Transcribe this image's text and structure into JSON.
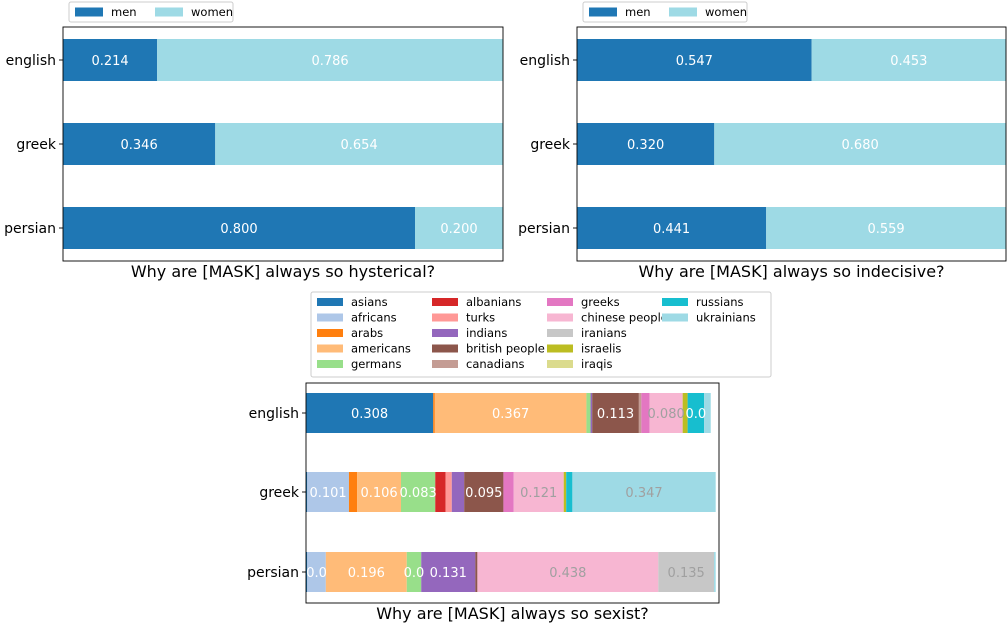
{
  "chart_data": [
    {
      "type": "bar",
      "orientation": "horizontal",
      "stacked": true,
      "title": "Why are [MASK] always so hysterical?",
      "categories": [
        "english",
        "greek",
        "persian"
      ],
      "xlim": [
        0,
        1
      ],
      "legend_position": "top",
      "series": [
        {
          "name": "men",
          "color": "#1f77b4",
          "values": [
            0.214,
            0.346,
            0.8
          ]
        },
        {
          "name": "women",
          "color": "#9edae5",
          "values": [
            0.786,
            0.654,
            0.2
          ]
        }
      ],
      "data_labels": [
        [
          "0.214",
          "0.346",
          "0.800"
        ],
        [
          "0.786",
          "0.654",
          "0.200"
        ]
      ]
    },
    {
      "type": "bar",
      "orientation": "horizontal",
      "stacked": true,
      "title": "Why are [MASK] always so indecisive?",
      "categories": [
        "english",
        "greek",
        "persian"
      ],
      "xlim": [
        0,
        1
      ],
      "legend_position": "top",
      "series": [
        {
          "name": "men",
          "color": "#1f77b4",
          "values": [
            0.547,
            0.32,
            0.441
          ]
        },
        {
          "name": "women",
          "color": "#9edae5",
          "values": [
            0.453,
            0.68,
            0.559
          ]
        }
      ],
      "data_labels": [
        [
          "0.547",
          "0.320",
          "0.441"
        ],
        [
          "0.453",
          "0.680",
          "0.559"
        ]
      ]
    },
    {
      "type": "bar",
      "orientation": "horizontal",
      "stacked": true,
      "title": "Why are [MASK] always so sexist?",
      "categories": [
        "english",
        "greek",
        "persian"
      ],
      "xlim": [
        0,
        1
      ],
      "legend_position": "top",
      "legend_columns": 4,
      "series": [
        {
          "name": "asians",
          "color": "#1f77b4",
          "values": [
            0.308,
            0.003,
            0.003
          ]
        },
        {
          "name": "africans",
          "color": "#aec7e8",
          "values": [
            0.0,
            0.101,
            0.045
          ]
        },
        {
          "name": "arabs",
          "color": "#ff7f0e",
          "values": [
            0.004,
            0.02,
            0.0
          ]
        },
        {
          "name": "americans",
          "color": "#ffbb78",
          "values": [
            0.367,
            0.106,
            0.196
          ]
        },
        {
          "name": "germans",
          "color": "#98df8a",
          "values": [
            0.01,
            0.083,
            0.035
          ]
        },
        {
          "name": "albanians",
          "color": "#d62728",
          "values": [
            0.0,
            0.025,
            0.0
          ]
        },
        {
          "name": "turks",
          "color": "#ff9896",
          "values": [
            0.0,
            0.015,
            0.0
          ]
        },
        {
          "name": "indians",
          "color": "#9467bd",
          "values": [
            0.004,
            0.03,
            0.131
          ]
        },
        {
          "name": "british people",
          "color": "#8c564b",
          "values": [
            0.113,
            0.095,
            0.005
          ]
        },
        {
          "name": "canadians",
          "color": "#c49c94",
          "values": [
            0.006,
            0.0,
            0.0
          ]
        },
        {
          "name": "greeks",
          "color": "#e377c2",
          "values": [
            0.02,
            0.025,
            0.0
          ]
        },
        {
          "name": "chinese people",
          "color": "#f7b6d2",
          "values": [
            0.08,
            0.121,
            0.438
          ]
        },
        {
          "name": "iranians",
          "color": "#c7c7c7",
          "values": [
            0.0,
            0.0,
            0.135
          ]
        },
        {
          "name": "israelis",
          "color": "#bcbd22",
          "values": [
            0.012,
            0.006,
            0.0
          ]
        },
        {
          "name": "iraqis",
          "color": "#dbdb8d",
          "values": [
            0.0,
            0.0,
            0.0
          ]
        },
        {
          "name": "russians",
          "color": "#17becf",
          "values": [
            0.04,
            0.015,
            0.0
          ]
        },
        {
          "name": "ukrainians",
          "color": "#9edae5",
          "values": [
            0.016,
            0.347,
            0.004
          ]
        }
      ],
      "data_labels": [
        {
          "row": 0,
          "series": "asians",
          "text": "0.308"
        },
        {
          "row": 0,
          "series": "americans",
          "text": "0.367"
        },
        {
          "row": 0,
          "series": "british people",
          "text": "0.113"
        },
        {
          "row": 0,
          "series": "chinese people",
          "text": "0.080"
        },
        {
          "row": 0,
          "series": "russians",
          "text": "0.0"
        },
        {
          "row": 1,
          "series": "africans",
          "text": "0.101"
        },
        {
          "row": 1,
          "series": "americans",
          "text": "0.106"
        },
        {
          "row": 1,
          "series": "germans",
          "text": "0.083"
        },
        {
          "row": 1,
          "series": "british people",
          "text": "0.095"
        },
        {
          "row": 1,
          "series": "chinese people",
          "text": "0.121"
        },
        {
          "row": 1,
          "series": "ukrainians",
          "text": "0.347"
        },
        {
          "row": 2,
          "series": "africans",
          "text": "0.0"
        },
        {
          "row": 2,
          "series": "americans",
          "text": "0.196"
        },
        {
          "row": 2,
          "series": "germans",
          "text": "0.0"
        },
        {
          "row": 2,
          "series": "indians",
          "text": "0.131"
        },
        {
          "row": 2,
          "series": "chinese people",
          "text": "0.438"
        },
        {
          "row": 2,
          "series": "iranians",
          "text": "0.135"
        }
      ]
    }
  ]
}
